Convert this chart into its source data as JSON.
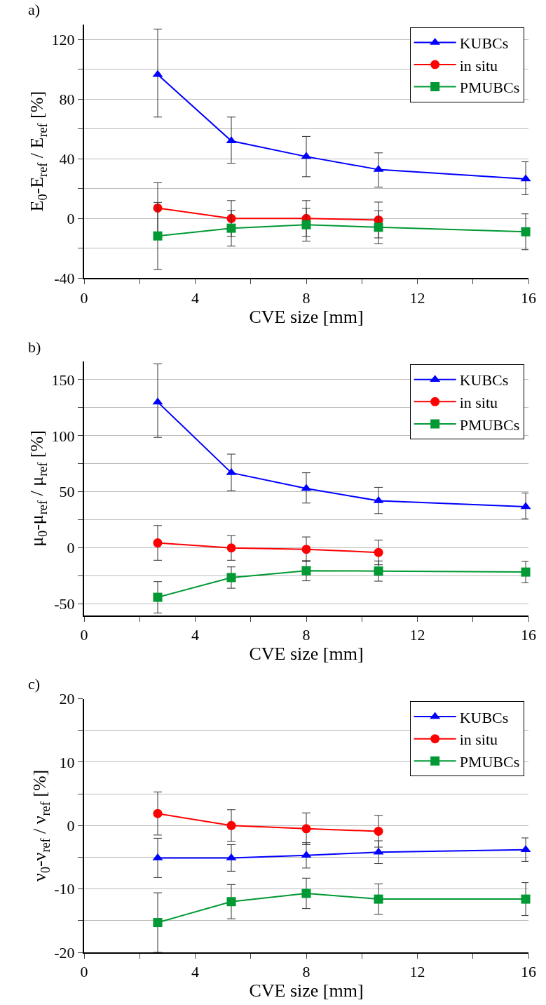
{
  "chart_data": [
    {
      "type": "line",
      "title": "a)",
      "xlabel": "CVE size [mm]",
      "ylabel": "E$_{0}$-E$_{ref}$ / E$_{ref}$ [%]",
      "x": [
        2.65,
        5.3,
        8,
        10.6,
        15.9
      ],
      "xlim": [
        0,
        16
      ],
      "xticks": [
        0,
        {
          "value": 2,
          "label": null
        },
        4,
        {
          "value": 6,
          "label": null
        },
        8,
        {
          "value": 10,
          "label": null
        },
        12,
        {
          "value": 14,
          "label": null
        },
        16
      ],
      "ylim": [
        -40,
        130
      ],
      "yticks": [
        -40,
        {
          "value": -20,
          "label": null
        },
        0,
        {
          "value": 20,
          "label": null
        },
        40,
        {
          "value": 60,
          "label": null
        },
        80,
        {
          "value": 100,
          "label": null
        },
        120
      ],
      "grid": "y",
      "legend": "top right",
      "line_style": "solid",
      "series": [
        {
          "name": "KUBCs",
          "color": "#0000ff",
          "marker": "triangle",
          "values": [
            96.5,
            52,
            41.5,
            32.8,
            26.5
          ],
          "errors": [
            [
              68,
              127
            ],
            [
              37,
              68
            ],
            [
              28,
              55
            ],
            [
              21,
              44
            ],
            [
              16,
              38
            ]
          ]
        },
        {
          "name": "in situ",
          "color": "#ff0000",
          "marker": "circle",
          "values": [
            7,
            0,
            0,
            -1,
            null
          ],
          "errors": [
            17,
            12,
            12,
            12,
            null
          ]
        },
        {
          "name": "PMUBCs",
          "color": "#009933",
          "marker": "square",
          "values": [
            -11.7,
            -6.5,
            -4.2,
            -5.9,
            -8.9
          ],
          "errors": [
            22.5,
            12,
            11,
            11,
            12
          ]
        }
      ]
    },
    {
      "type": "line",
      "title": "b)",
      "xlabel": "CVE size [mm]",
      "ylabel": "μ$_{0}$-μ$_{ref}$ / μ$_{ref}$ [%]",
      "x": [
        2.65,
        5.3,
        8,
        10.6,
        15.9
      ],
      "xlim": [
        0,
        16
      ],
      "xticks": [
        0,
        {
          "value": 2,
          "label": null
        },
        4,
        {
          "value": 6,
          "label": null
        },
        8,
        {
          "value": 10,
          "label": null
        },
        12,
        {
          "value": 14,
          "label": null
        },
        16
      ],
      "ylim": [
        -60,
        166
      ],
      "yticks": [
        -50,
        {
          "value": -25,
          "label": null
        },
        0,
        {
          "value": 25,
          "label": null
        },
        50,
        {
          "value": 75,
          "label": null
        },
        100,
        {
          "value": 125,
          "label": null
        },
        150
      ],
      "grid": "y",
      "legend": "top right",
      "line_style": "solid",
      "series": [
        {
          "name": "KUBCs",
          "color": "#0000ff",
          "marker": "triangle",
          "values": [
            130,
            67,
            53,
            42,
            36.7
          ],
          "errors": [
            [
              98.5,
              164
            ],
            [
              51,
              83.6
            ],
            [
              40,
              67
            ],
            [
              30.6,
              54
            ],
            [
              26,
              49
            ]
          ]
        },
        {
          "name": "in situ",
          "color": "#ff0000",
          "marker": "circle",
          "values": [
            4.5,
            0,
            -1.2,
            -4,
            null
          ],
          "errors": [
            15.5,
            11,
            11,
            11,
            null
          ]
        },
        {
          "name": "PMUBCs",
          "color": "#009933",
          "marker": "square",
          "values": [
            -44,
            -26.4,
            -20.3,
            -20.6,
            -21.5
          ],
          "errors": [
            14,
            9.5,
            9,
            9,
            9.5
          ]
        }
      ]
    },
    {
      "type": "line",
      "title": "c)",
      "xlabel": "CVE size [mm]",
      "ylabel": "ν$_{0}$-ν$_{ref}$ / ν$_{ref}$ [%]",
      "x": [
        2.65,
        5.3,
        8,
        10.6,
        15.9
      ],
      "xlim": [
        0,
        16
      ],
      "xticks": [
        0,
        {
          "value": 2,
          "label": null
        },
        4,
        {
          "value": 6,
          "label": null
        },
        8,
        {
          "value": 10,
          "label": null
        },
        12,
        {
          "value": 14,
          "label": null
        },
        16
      ],
      "ylim": [
        -20,
        20
      ],
      "yticks": [
        -20,
        {
          "value": -15,
          "label": null
        },
        -10,
        {
          "value": -5,
          "label": null
        },
        0,
        {
          "value": 5,
          "label": null
        },
        10,
        {
          "value": 15,
          "label": null
        },
        20
      ],
      "grid": "y",
      "legend": "top right",
      "line_style": "solid",
      "series": [
        {
          "name": "KUBCs",
          "color": "#0000ff",
          "marker": "triangle",
          "values": [
            -5.1,
            -5.1,
            -4.7,
            -4.2,
            -3.8
          ],
          "errors": [
            3.1,
            2.1,
            2,
            1.8,
            1.85
          ]
        },
        {
          "name": "in situ",
          "color": "#ff0000",
          "marker": "circle",
          "values": [
            1.9,
            0,
            -0.5,
            -0.9,
            null
          ],
          "errors": [
            3.4,
            2.5,
            2.5,
            2.5,
            null
          ]
        },
        {
          "name": "PMUBCs",
          "color": "#009933",
          "marker": "square",
          "values": [
            -15.3,
            -12,
            -10.7,
            -11.6,
            -11.6
          ],
          "errors": [
            4.7,
            2.7,
            2.4,
            2.4,
            2.6
          ]
        }
      ]
    }
  ]
}
